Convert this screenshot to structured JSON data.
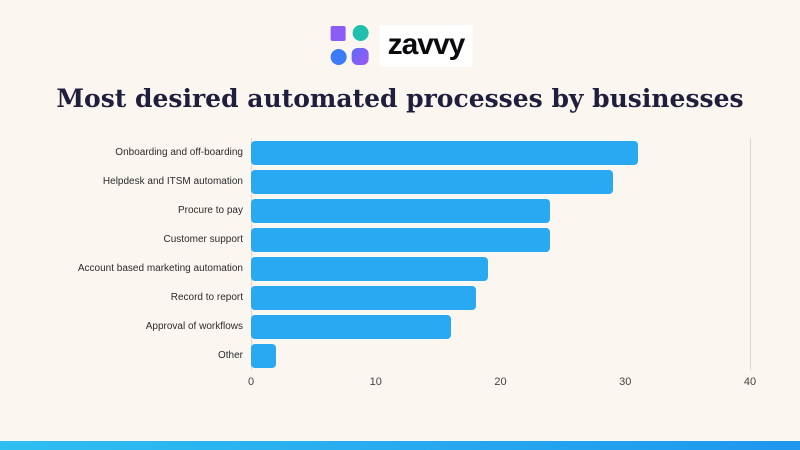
{
  "logo": {
    "text": "zavvy",
    "icon": "zavvy-shapes-icon",
    "colors": {
      "square": "#8B5CF6",
      "circle_teal": "#1FBFAD",
      "circle_blue": "#3B7BF6",
      "blob_from": "#5B6CF6",
      "blob_to": "#A056F6"
    }
  },
  "chart_data": {
    "type": "bar",
    "orientation": "horizontal",
    "title": "Most desired automated processes by businesses",
    "categories": [
      "Onboarding and off-boarding",
      "Helpdesk and ITSM automation",
      "Procure to pay",
      "Customer support",
      "Account based marketing automation",
      "Record to report",
      "Approval of workflows",
      "Other"
    ],
    "values": [
      31,
      29,
      24,
      24,
      19,
      18,
      16,
      2
    ],
    "xlim": [
      0,
      40
    ],
    "x_ticks": [
      0,
      10,
      20,
      30,
      40
    ],
    "grid_line_ticks": [
      0,
      40
    ],
    "bar_color": "#29A9F2",
    "legend": "none",
    "xlabel": "",
    "ylabel": ""
  },
  "colors": {
    "background": "#FBF7F0",
    "title_text": "#201E3D",
    "axis_text": "#444444",
    "accent_strip_from": "#2FBFF0",
    "accent_strip_to": "#1E97EF"
  }
}
